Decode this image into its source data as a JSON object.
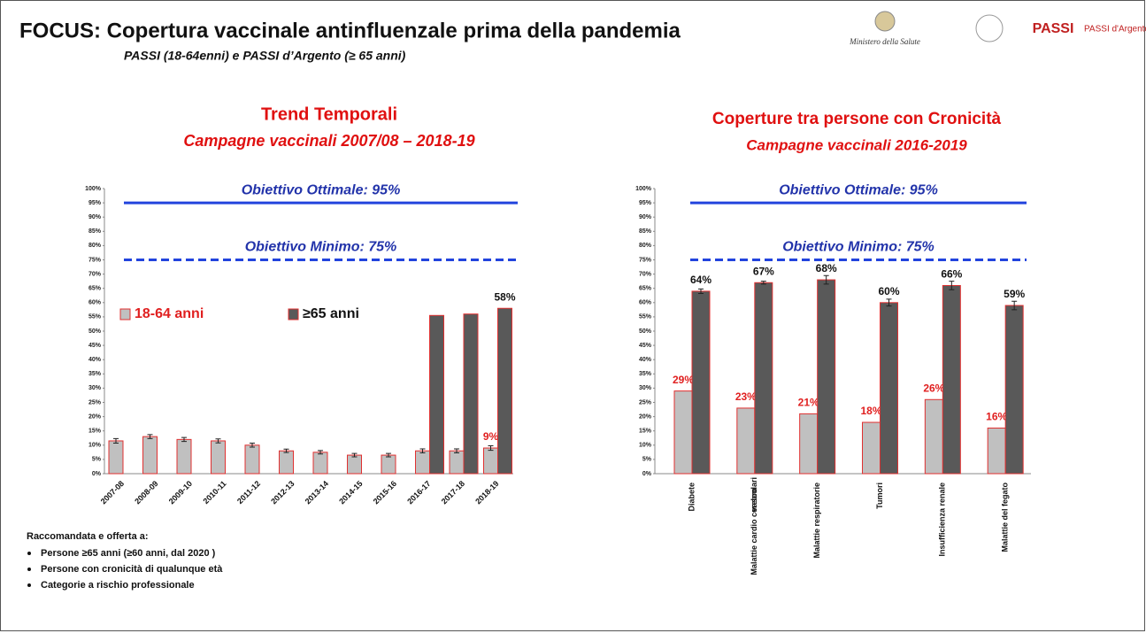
{
  "header": {
    "title": "FOCUS: Copertura vaccinale antinfluenzale prima della pandemia",
    "subtitle": "PASSI (18-64enni) e PASSI d’Argento (≥ 65 anni)",
    "logos": [
      "Ministero della Salute",
      "PASSI",
      "PASSI d'Argento"
    ]
  },
  "notes": {
    "heading": "Raccomandata e offerta a:",
    "items": [
      "Persone ≥65 anni (≥60 anni, dal 2020 )",
      "Persone con cronicità di qualunque età",
      "Categorie a rischio professionale"
    ]
  },
  "chart_data": [
    {
      "type": "bar",
      "title": "Trend Temporali",
      "subtitle": "Campagne vaccinali 2007/08 – 2018-19",
      "categories": [
        "2007-08",
        "2008-09",
        "2009-10",
        "2010-11",
        "2011-12",
        "2012-13",
        "2013-14",
        "2014-15",
        "2015-16",
        "2016-17",
        "2017-18",
        "2018-19"
      ],
      "series": [
        {
          "name": "18-64 anni",
          "color": "#c0c0c0",
          "stroke": "#e03030",
          "label_color": "#e02020",
          "values": [
            11.5,
            13,
            12,
            11.5,
            10,
            8,
            7.5,
            6.5,
            6.5,
            8,
            8,
            9
          ],
          "errors": [
            0.8,
            0.7,
            0.7,
            0.7,
            0.7,
            0.6,
            0.6,
            0.6,
            0.6,
            0.7,
            0.7,
            0.8
          ],
          "value_labels": [
            null,
            null,
            null,
            null,
            null,
            null,
            null,
            null,
            null,
            null,
            null,
            "9%"
          ]
        },
        {
          "name": "≥65 anni",
          "color": "#595959",
          "stroke": "#e03030",
          "label_color": "#111111",
          "values": [
            null,
            null,
            null,
            null,
            null,
            null,
            null,
            null,
            null,
            55.5,
            56,
            58
          ],
          "value_labels": [
            null,
            null,
            null,
            null,
            null,
            null,
            null,
            null,
            null,
            null,
            null,
            "58%"
          ]
        }
      ],
      "legend": "center-left",
      "reference_lines": [
        {
          "label": "Obiettivo Ottimale: 95%",
          "value": 95,
          "style": "solid",
          "color": "#2244dd"
        },
        {
          "label": "Obiettivo Minimo: 75%",
          "value": 75,
          "style": "dashed",
          "color": "#2244dd"
        }
      ],
      "ylim": [
        0,
        100
      ],
      "yticks": [
        {
          "value": 0,
          "label": "0%"
        },
        {
          "value": 5,
          "label": "5%"
        },
        {
          "value": 10,
          "label": "10%"
        },
        {
          "value": 15,
          "label": "15%"
        },
        {
          "value": 20,
          "label": "20%"
        },
        {
          "value": 25,
          "label": "25%"
        },
        {
          "value": 30,
          "label": "30%"
        },
        {
          "value": 35,
          "label": "35%"
        },
        {
          "value": 40,
          "label": "40%"
        },
        {
          "value": 45,
          "label": "45%"
        },
        {
          "value": 50,
          "label": "50%"
        },
        {
          "value": 55,
          "label": "55%"
        },
        {
          "value": 60,
          "label": "60%"
        },
        {
          "value": 65,
          "label": "65%"
        },
        {
          "value": 70,
          "label": "70%"
        },
        {
          "value": 75,
          "label": "75%"
        },
        {
          "value": 80,
          "label": "80%"
        },
        {
          "value": 85,
          "label": "85%"
        },
        {
          "value": 90,
          "label": "90%"
        },
        {
          "value": 95,
          "label": "95%"
        },
        {
          "value": 100,
          "label": "100%"
        }
      ]
    },
    {
      "type": "bar",
      "title": "Coperture tra persone con Cronicità",
      "subtitle": "Campagne vaccinali 2016-2019",
      "categories": [
        "Diabete",
        "Malattie cardio cerebro vascolari",
        "Malattie respiratorie",
        "Tumori",
        "Insufficienza renale",
        "Malattie del fegato"
      ],
      "series": [
        {
          "color": "#c0c0c0",
          "stroke": "#e03030",
          "label_color": "#e02020",
          "values": [
            29,
            23,
            21,
            18,
            26,
            16
          ],
          "value_labels": [
            "29%",
            "23%",
            "21%",
            "18%",
            "26%",
            "16%"
          ]
        },
        {
          "color": "#595959",
          "stroke": "#e03030",
          "label_color": "#111111",
          "values": [
            64,
            67,
            68,
            60,
            66,
            59
          ],
          "errors": [
            0.8,
            0.5,
            1.5,
            1.2,
            1.5,
            1.5
          ],
          "value_labels": [
            "64%",
            "67%",
            "68%",
            "60%",
            "66%",
            "59%"
          ]
        }
      ],
      "reference_lines": [
        {
          "label": "Obiettivo Ottimale: 95%",
          "value": 95,
          "style": "solid",
          "color": "#2244dd"
        },
        {
          "label": "Obiettivo Minimo: 75%",
          "value": 75,
          "style": "dashed",
          "color": "#2244dd"
        }
      ],
      "ylim": [
        0,
        100
      ],
      "yticks": [
        {
          "value": 0,
          "label": "0%"
        },
        {
          "value": 5,
          "label": "5%"
        },
        {
          "value": 10,
          "label": "10%"
        },
        {
          "value": 15,
          "label": "15%"
        },
        {
          "value": 20,
          "label": "20%"
        },
        {
          "value": 25,
          "label": "25%"
        },
        {
          "value": 30,
          "label": "30%"
        },
        {
          "value": 35,
          "label": "35%"
        },
        {
          "value": 40,
          "label": "40%"
        },
        {
          "value": 45,
          "label": "45%"
        },
        {
          "value": 50,
          "label": "50%"
        },
        {
          "value": 55,
          "label": "55%"
        },
        {
          "value": 60,
          "label": "60%"
        },
        {
          "value": 65,
          "label": "65%"
        },
        {
          "value": 70,
          "label": "70%"
        },
        {
          "value": 75,
          "label": "75%"
        },
        {
          "value": 80,
          "label": "80%"
        },
        {
          "value": 85,
          "label": "85%"
        },
        {
          "value": 90,
          "label": "90%"
        },
        {
          "value": 95,
          "label": "95%"
        },
        {
          "value": 100,
          "label": "100%"
        }
      ]
    }
  ]
}
